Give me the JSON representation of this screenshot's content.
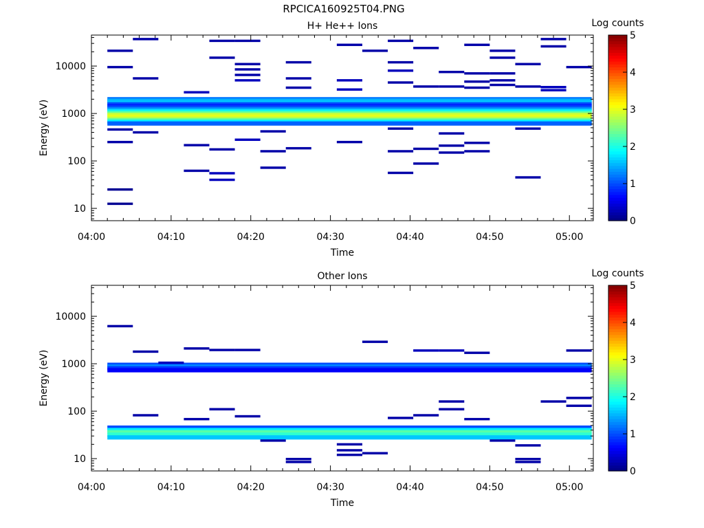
{
  "title": "RPCICA160925T04.PNG",
  "chart_data": [
    {
      "type": "heatmap",
      "title": "H+ He++ Ions",
      "xlabel": "Time",
      "ylabel": "Energy (eV)",
      "colorbar_label": "Log counts",
      "colorbar_ticks": [
        "0",
        "1",
        "2",
        "3",
        "4",
        "5"
      ],
      "x_tick_labels": [
        "04:00",
        "04:10",
        "04:20",
        "04:30",
        "04:40",
        "04:50",
        "05:00"
      ],
      "y_tick_labels": [
        "10",
        "100",
        "1000",
        "10000"
      ],
      "y_scale": "log",
      "ylim": [
        5.5,
        45000
      ],
      "xlim_minutes": [
        0,
        63
      ],
      "color_range": [
        0,
        5
      ],
      "colormap": "jet",
      "cells": [
        {
          "t0": 2,
          "t1": 5.2,
          "e": 12.5,
          "v": 0.1
        },
        {
          "t0": 2,
          "t1": 5.2,
          "e": 25,
          "v": 0.1
        },
        {
          "t0": 2,
          "t1": 5.2,
          "e": 250,
          "v": 0.2
        },
        {
          "t0": 2,
          "t1": 5.2,
          "e": 460,
          "v": 0.2
        },
        {
          "t0": 2,
          "t1": 5.2,
          "e": 9500,
          "v": 0.2
        },
        {
          "t0": 2,
          "t1": 5.2,
          "e": 21000,
          "v": 0.2
        },
        {
          "t0": 5.2,
          "t1": 8.4,
          "e": 5500,
          "v": 0.2
        },
        {
          "t0": 5.2,
          "t1": 8.4,
          "e": 37000,
          "v": 0.2
        },
        {
          "t0": 5.2,
          "t1": 8.4,
          "e": 400,
          "v": 0.2
        },
        {
          "t0": 11.6,
          "t1": 14.8,
          "e": 2800,
          "v": 0.3
        },
        {
          "t0": 11.6,
          "t1": 14.8,
          "e": 215,
          "v": 0.2
        },
        {
          "t0": 11.6,
          "t1": 14.8,
          "e": 62,
          "v": 0.2
        },
        {
          "t0": 14.8,
          "t1": 18,
          "e": 34000,
          "v": 0.2
        },
        {
          "t0": 14.8,
          "t1": 18,
          "e": 15000,
          "v": 0.2
        },
        {
          "t0": 14.8,
          "t1": 18,
          "e": 175,
          "v": 0.2
        },
        {
          "t0": 14.8,
          "t1": 18,
          "e": 55,
          "v": 0.3
        },
        {
          "t0": 14.8,
          "t1": 18,
          "e": 40,
          "v": 0.3
        },
        {
          "t0": 18,
          "t1": 21.2,
          "e": 34000,
          "v": 0.2
        },
        {
          "t0": 18,
          "t1": 21.2,
          "e": 11000,
          "v": 0.2
        },
        {
          "t0": 18,
          "t1": 21.2,
          "e": 8500,
          "v": 0.2
        },
        {
          "t0": 18,
          "t1": 21.2,
          "e": 6500,
          "v": 0.2
        },
        {
          "t0": 18,
          "t1": 21.2,
          "e": 5000,
          "v": 0.3
        },
        {
          "t0": 18,
          "t1": 21.2,
          "e": 280,
          "v": 0.3
        },
        {
          "t0": 21.2,
          "t1": 24.4,
          "e": 420,
          "v": 0.2
        },
        {
          "t0": 21.2,
          "t1": 24.4,
          "e": 160,
          "v": 0.2
        },
        {
          "t0": 21.2,
          "t1": 24.4,
          "e": 72,
          "v": 0.2
        },
        {
          "t0": 24.4,
          "t1": 27.6,
          "e": 12000,
          "v": 0.2
        },
        {
          "t0": 24.4,
          "t1": 27.6,
          "e": 5500,
          "v": 0.2
        },
        {
          "t0": 24.4,
          "t1": 27.6,
          "e": 3500,
          "v": 0.2
        },
        {
          "t0": 24.4,
          "t1": 27.6,
          "e": 185,
          "v": 0.2
        },
        {
          "t0": 30.8,
          "t1": 34,
          "e": 28000,
          "v": 0.2
        },
        {
          "t0": 30.8,
          "t1": 34,
          "e": 5000,
          "v": 0.3
        },
        {
          "t0": 30.8,
          "t1": 34,
          "e": 3200,
          "v": 0.3
        },
        {
          "t0": 30.8,
          "t1": 34,
          "e": 250,
          "v": 0.2
        },
        {
          "t0": 34,
          "t1": 37.2,
          "e": 21000,
          "v": 0.2
        },
        {
          "t0": 37.2,
          "t1": 40.4,
          "e": 34000,
          "v": 0.2
        },
        {
          "t0": 37.2,
          "t1": 40.4,
          "e": 12000,
          "v": 0.2
        },
        {
          "t0": 37.2,
          "t1": 40.4,
          "e": 8000,
          "v": 0.3
        },
        {
          "t0": 37.2,
          "t1": 40.4,
          "e": 4500,
          "v": 0.2
        },
        {
          "t0": 37.2,
          "t1": 40.4,
          "e": 480,
          "v": 0.2
        },
        {
          "t0": 37.2,
          "t1": 40.4,
          "e": 160,
          "v": 0.2
        },
        {
          "t0": 37.2,
          "t1": 40.4,
          "e": 56,
          "v": 0.2
        },
        {
          "t0": 40.4,
          "t1": 43.6,
          "e": 24000,
          "v": 0.2
        },
        {
          "t0": 40.4,
          "t1": 43.6,
          "e": 3700,
          "v": 0.2
        },
        {
          "t0": 40.4,
          "t1": 43.6,
          "e": 180,
          "v": 0.2
        },
        {
          "t0": 40.4,
          "t1": 43.6,
          "e": 88,
          "v": 0.2
        },
        {
          "t0": 43.6,
          "t1": 46.8,
          "e": 7500,
          "v": 0.2
        },
        {
          "t0": 43.6,
          "t1": 46.8,
          "e": 3700,
          "v": 0.2
        },
        {
          "t0": 43.6,
          "t1": 46.8,
          "e": 380,
          "v": 0.2
        },
        {
          "t0": 43.6,
          "t1": 46.8,
          "e": 210,
          "v": 0.2
        },
        {
          "t0": 43.6,
          "t1": 46.8,
          "e": 150,
          "v": 0.2
        },
        {
          "t0": 46.8,
          "t1": 50,
          "e": 28000,
          "v": 0.2
        },
        {
          "t0": 46.8,
          "t1": 50,
          "e": 7000,
          "v": 0.2
        },
        {
          "t0": 46.8,
          "t1": 50,
          "e": 4700,
          "v": 0.2
        },
        {
          "t0": 46.8,
          "t1": 50,
          "e": 3500,
          "v": 0.2
        },
        {
          "t0": 46.8,
          "t1": 50,
          "e": 240,
          "v": 0.2
        },
        {
          "t0": 46.8,
          "t1": 50,
          "e": 160,
          "v": 0.2
        },
        {
          "t0": 50,
          "t1": 53.2,
          "e": 21000,
          "v": 0.2
        },
        {
          "t0": 50,
          "t1": 53.2,
          "e": 15000,
          "v": 0.2
        },
        {
          "t0": 50,
          "t1": 53.2,
          "e": 7000,
          "v": 0.2
        },
        {
          "t0": 50,
          "t1": 53.2,
          "e": 5000,
          "v": 0.2
        },
        {
          "t0": 50,
          "t1": 53.2,
          "e": 4000,
          "v": 0.2
        },
        {
          "t0": 53.2,
          "t1": 56.4,
          "e": 11000,
          "v": 0.2
        },
        {
          "t0": 53.2,
          "t1": 56.4,
          "e": 3700,
          "v": 0.2
        },
        {
          "t0": 53.2,
          "t1": 56.4,
          "e": 480,
          "v": 0.2
        },
        {
          "t0": 53.2,
          "t1": 56.4,
          "e": 45,
          "v": 0.2
        },
        {
          "t0": 56.4,
          "t1": 59.6,
          "e": 37000,
          "v": 0.2
        },
        {
          "t0": 56.4,
          "t1": 59.6,
          "e": 26000,
          "v": 0.2
        },
        {
          "t0": 56.4,
          "t1": 59.6,
          "e": 3600,
          "v": 0.3
        },
        {
          "t0": 56.4,
          "t1": 59.6,
          "e": 3100,
          "v": 0.3
        },
        {
          "t0": 59.6,
          "t1": 62.8,
          "e": 9500,
          "v": 0.2
        }
      ],
      "profile_range": [
        2,
        62.8
      ],
      "profile": [
        {
          "e": 2000,
          "v": 1.2
        },
        {
          "e": 1850,
          "v": 1.5
        },
        {
          "e": 1700,
          "v": 1.6
        },
        {
          "e": 1560,
          "v": 1.0
        },
        {
          "e": 1440,
          "v": 0.8
        },
        {
          "e": 1320,
          "v": 1.0
        },
        {
          "e": 1210,
          "v": 1.4
        },
        {
          "e": 1110,
          "v": 1.8
        },
        {
          "e": 1020,
          "v": 2.3
        },
        {
          "e": 940,
          "v": 2.8
        },
        {
          "e": 860,
          "v": 3.0
        },
        {
          "e": 790,
          "v": 2.9
        },
        {
          "e": 730,
          "v": 2.4
        },
        {
          "e": 670,
          "v": 1.8
        },
        {
          "e": 615,
          "v": 1.1
        }
      ]
    },
    {
      "type": "heatmap",
      "title": "Other Ions",
      "xlabel": "Time",
      "ylabel": "Energy (eV)",
      "colorbar_label": "Log counts",
      "colorbar_ticks": [
        "0",
        "1",
        "2",
        "3",
        "4",
        "5"
      ],
      "x_tick_labels": [
        "04:00",
        "04:10",
        "04:20",
        "04:30",
        "04:40",
        "04:50",
        "05:00"
      ],
      "y_tick_labels": [
        "10",
        "100",
        "1000",
        "10000"
      ],
      "y_scale": "log",
      "ylim": [
        5.5,
        45000
      ],
      "xlim_minutes": [
        0,
        63
      ],
      "color_range": [
        0,
        5
      ],
      "colormap": "jet",
      "cells": [
        {
          "t0": 2,
          "t1": 5.2,
          "e": 6200,
          "v": 0.2
        },
        {
          "t0": 5.2,
          "t1": 8.4,
          "e": 1800,
          "v": 0.2
        },
        {
          "t0": 5.2,
          "t1": 8.4,
          "e": 82,
          "v": 0.2
        },
        {
          "t0": 8.4,
          "t1": 11.6,
          "e": 1050,
          "v": 0.3
        },
        {
          "t0": 11.6,
          "t1": 14.8,
          "e": 2100,
          "v": 0.2
        },
        {
          "t0": 11.6,
          "t1": 14.8,
          "e": 68,
          "v": 0.2
        },
        {
          "t0": 14.8,
          "t1": 18,
          "e": 1950,
          "v": 0.2
        },
        {
          "t0": 14.8,
          "t1": 18,
          "e": 110,
          "v": 0.2
        },
        {
          "t0": 18,
          "t1": 21.2,
          "e": 1950,
          "v": 0.2
        },
        {
          "t0": 18,
          "t1": 21.2,
          "e": 78,
          "v": 0.2
        },
        {
          "t0": 21.2,
          "t1": 24.4,
          "e": 24,
          "v": 0.2
        },
        {
          "t0": 24.4,
          "t1": 27.6,
          "e": 8.5,
          "v": 0.2
        },
        {
          "t0": 24.4,
          "t1": 27.6,
          "e": 9.8,
          "v": 0.2
        },
        {
          "t0": 30.8,
          "t1": 34,
          "e": 12,
          "v": 0.2
        },
        {
          "t0": 30.8,
          "t1": 34,
          "e": 15,
          "v": 0.2
        },
        {
          "t0": 30.8,
          "t1": 34,
          "e": 20,
          "v": 0.2
        },
        {
          "t0": 34,
          "t1": 37.2,
          "e": 2900,
          "v": 0.2
        },
        {
          "t0": 34,
          "t1": 37.2,
          "e": 13,
          "v": 0.2
        },
        {
          "t0": 37.2,
          "t1": 40.4,
          "e": 72,
          "v": 0.2
        },
        {
          "t0": 40.4,
          "t1": 43.6,
          "e": 1900,
          "v": 0.3
        },
        {
          "t0": 40.4,
          "t1": 43.6,
          "e": 82,
          "v": 0.2
        },
        {
          "t0": 43.6,
          "t1": 46.8,
          "e": 1900,
          "v": 0.3
        },
        {
          "t0": 43.6,
          "t1": 46.8,
          "e": 160,
          "v": 0.2
        },
        {
          "t0": 43.6,
          "t1": 46.8,
          "e": 110,
          "v": 0.2
        },
        {
          "t0": 46.8,
          "t1": 50,
          "e": 1700,
          "v": 0.2
        },
        {
          "t0": 46.8,
          "t1": 50,
          "e": 68,
          "v": 0.2
        },
        {
          "t0": 50,
          "t1": 53.2,
          "e": 24,
          "v": 0.2
        },
        {
          "t0": 53.2,
          "t1": 56.4,
          "e": 19,
          "v": 0.2
        },
        {
          "t0": 53.2,
          "t1": 56.4,
          "e": 8.5,
          "v": 0.2
        },
        {
          "t0": 53.2,
          "t1": 56.4,
          "e": 9.8,
          "v": 0.2
        },
        {
          "t0": 56.4,
          "t1": 59.6,
          "e": 160,
          "v": 0.2
        },
        {
          "t0": 59.6,
          "t1": 62.8,
          "e": 1900,
          "v": 0.2
        },
        {
          "t0": 59.6,
          "t1": 62.8,
          "e": 190,
          "v": 0.2
        },
        {
          "t0": 59.6,
          "t1": 62.8,
          "e": 130,
          "v": 0.2
        }
      ],
      "profile_range": [
        2,
        62.8
      ],
      "profile": [
        {
          "e": 950,
          "v": 1.0
        },
        {
          "e": 870,
          "v": 1.3
        },
        {
          "e": 800,
          "v": 0.9
        },
        {
          "e": 730,
          "v": 0.6
        },
        {
          "e": 45,
          "v": 1.0
        },
        {
          "e": 40,
          "v": 1.8
        },
        {
          "e": 36,
          "v": 2.3
        },
        {
          "e": 32,
          "v": 2.1
        },
        {
          "e": 28,
          "v": 1.6
        }
      ]
    }
  ]
}
